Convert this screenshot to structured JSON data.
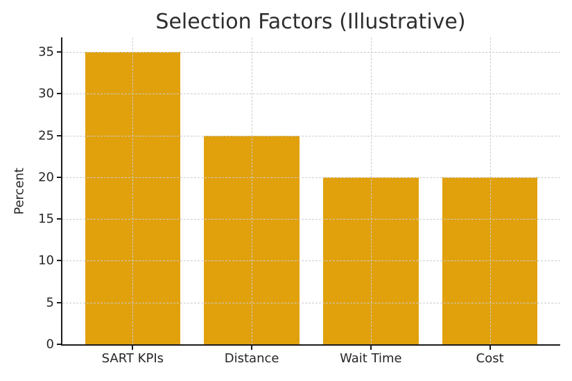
{
  "chart_data": {
    "type": "bar",
    "title": "Selection Factors (Illustrative)",
    "categories": [
      "SART KPIs",
      "Distance",
      "Wait Time",
      "Cost"
    ],
    "values": [
      35,
      25,
      20,
      20
    ],
    "xlabel": "",
    "ylabel": "Percent",
    "ylim": [
      0,
      36.75
    ],
    "yticks": [
      0,
      5,
      10,
      15,
      20,
      25,
      30,
      35
    ],
    "legend": "none",
    "grid": "both-dashed",
    "colors": {
      "bar": "#E1A10D",
      "grid": "#cbcbcb",
      "axis": "#1a1a1a",
      "text": "#262626",
      "title": "#2e2e2e",
      "background": "#ffffff"
    }
  }
}
